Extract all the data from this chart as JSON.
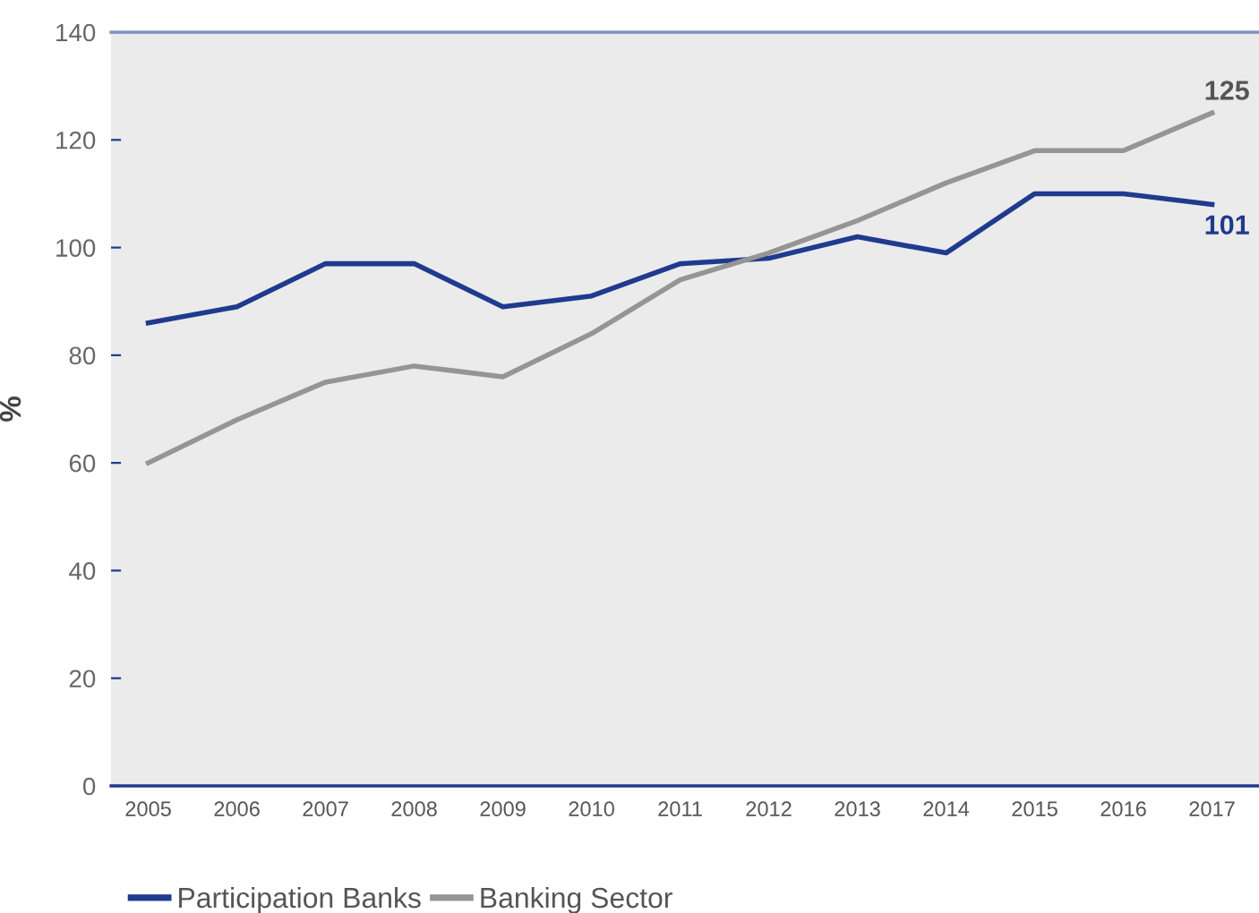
{
  "chart_data": {
    "type": "line",
    "ylabel": "%",
    "categories": [
      "2005",
      "2006",
      "2007",
      "2008",
      "2009",
      "2010",
      "2011",
      "2012",
      "2013",
      "2014",
      "2015",
      "2016",
      "2017"
    ],
    "series": [
      {
        "name": "Participation Banks",
        "color": "#1f3a8f",
        "values": [
          86,
          89,
          97,
          97,
          89,
          91,
          97,
          98,
          102,
          99,
          110,
          110,
          108
        ]
      },
      {
        "name": "Banking Sector",
        "color": "#959595",
        "values": [
          60,
          68,
          75,
          78,
          76,
          84,
          94,
          99,
          105,
          112,
          118,
          118,
          125
        ]
      }
    ],
    "ylim": [
      0,
      140
    ],
    "yticks": [
      0,
      20,
      40,
      60,
      80,
      100,
      120,
      140
    ],
    "annotations": [
      {
        "text": "125",
        "x": "2017",
        "y": 125
      },
      {
        "text": "101",
        "x": "2017",
        "y": 108
      }
    ],
    "legend": "bottom",
    "marker": "none",
    "line_style": "solid",
    "grid": false
  }
}
